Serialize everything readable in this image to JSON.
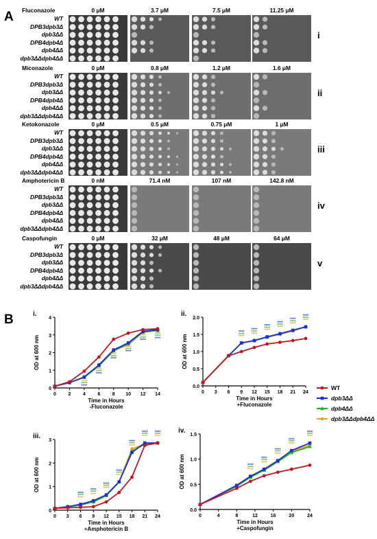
{
  "panel_a": {
    "letter": "A",
    "strains": [
      "WT",
      "DPB3dpb3Δ",
      "dpb3ΔΔ",
      "DPB4dpb4Δ",
      "dpb4ΔΔ",
      "dpb3ΔΔdpb4ΔΔ"
    ],
    "rows": [
      {
        "drug": "Fluconazole",
        "concs": [
          "0 μM",
          "3.7 μM",
          "7.5 μM",
          "11.25 μM"
        ],
        "roman": "i",
        "strains": [
          "WT",
          "DPB3dpb3Δ",
          "dpb3ΔΔ",
          "DPB4dpb4Δ",
          "dpb4ΔΔ",
          "dpb3ΔΔdpb4ΔΔ"
        ]
      },
      {
        "drug": "Miconazole",
        "concs": [
          "0 μM",
          "0.8 μM",
          "1.2 μM",
          "1.6 μM"
        ],
        "roman": "ii",
        "strains": [
          "WT",
          "DPB3dpb3Δ",
          "dpb3ΔΔ",
          "DPB4dpb4Δ",
          "dpb4ΔΔ",
          "dpb3ΔΔdpb4ΔΔ"
        ]
      },
      {
        "drug": "Ketokonazole",
        "concs": [
          "0 μM",
          "0.5 μM",
          "0.75 μM",
          "1 μM"
        ],
        "roman": "iii",
        "strains": [
          "WT",
          "DPB3dpb3Δ",
          "dpb3ΔΔ",
          "DPB4dpb4Δ",
          "dpb4ΔΔ",
          "dpb3ΔΔdpb4ΔΔ"
        ]
      },
      {
        "drug": "Amphotericin B",
        "concs": [
          "0 nM",
          "71.4 nM",
          "107 nM",
          "142.8 nM"
        ],
        "roman": "iv",
        "strains": [
          "WT",
          "DPB3dpb3Δ",
          "dpb3ΔΔ",
          "DPB4dpb4Δ",
          "dpb4ΔΔ",
          "dpb3ΔΔdpb4ΔΔ"
        ]
      },
      {
        "drug": "Caspofungin",
        "concs": [
          "0 μM",
          "32 μM",
          "48 μM",
          "64 μM"
        ],
        "roman": "v",
        "strains": [
          "WT",
          "DPB3dpb3Δ",
          "dpb3ΔΔ",
          "DPB4dpb4Δ",
          "dpb4ΔΔ",
          "dpb3ΔΔdpb4ΔΔ"
        ]
      }
    ]
  },
  "panel_b": {
    "letter": "B"
  },
  "legend": [
    {
      "label": "WT",
      "color": "#c0161e",
      "marker": "circle"
    },
    {
      "label": "dpb3ΔΔ",
      "color": "#1a2fd6",
      "marker": "square"
    },
    {
      "label": "dpb4ΔΔ",
      "color": "#1fb51f",
      "marker": "triangle"
    },
    {
      "label": "dpb3ΔΔdpb4ΔΔ",
      "color": "#f59a1c",
      "marker": "diamond"
    }
  ],
  "chart_data": [
    {
      "type": "line",
      "roman": "i.",
      "ylabel": "OD at 600 nm",
      "xlabel": "Time in Hours",
      "subtitle": "-Fluconazole",
      "xlim": [
        0,
        14
      ],
      "ylim": [
        0,
        4
      ],
      "xticks": [
        0,
        2,
        4,
        6,
        8,
        10,
        12,
        14
      ],
      "yticks": [
        0,
        1,
        2,
        3,
        4
      ],
      "x": [
        0,
        2,
        4,
        6,
        8,
        10,
        12,
        14
      ],
      "series": [
        {
          "name": "WT",
          "values": [
            0.1,
            0.35,
            0.95,
            1.75,
            2.75,
            3.1,
            3.3,
            3.35
          ]
        },
        {
          "name": "dpb3ΔΔ",
          "values": [
            0.1,
            0.3,
            0.62,
            1.3,
            2.15,
            2.55,
            3.2,
            3.3
          ]
        },
        {
          "name": "dpb4ΔΔ",
          "values": [
            0.1,
            0.3,
            0.6,
            1.25,
            2.1,
            2.5,
            3.15,
            3.25
          ]
        },
        {
          "name": "dpb3ΔΔdpb4ΔΔ",
          "values": [
            0.1,
            0.3,
            0.6,
            1.25,
            2.1,
            2.45,
            3.15,
            3.25
          ]
        }
      ]
    },
    {
      "type": "line",
      "roman": "ii.",
      "ylabel": "OD at 600 nm",
      "xlabel": "Time in Hours",
      "subtitle": "+Fluconazole",
      "xlim": [
        0,
        24
      ],
      "ylim": [
        0,
        2.0
      ],
      "xticks": [
        0,
        3,
        6,
        9,
        12,
        15,
        18,
        21,
        24
      ],
      "yticks": [
        0.0,
        0.5,
        1.0,
        1.5,
        2.0
      ],
      "x": [
        0,
        6,
        9,
        12,
        15,
        18,
        21,
        24
      ],
      "series": [
        {
          "name": "WT",
          "values": [
            0.1,
            0.88,
            1.0,
            1.12,
            1.22,
            1.27,
            1.32,
            1.38
          ]
        },
        {
          "name": "dpb3ΔΔ",
          "values": [
            0.1,
            0.88,
            1.25,
            1.32,
            1.43,
            1.52,
            1.62,
            1.72
          ]
        },
        {
          "name": "dpb4ΔΔ",
          "values": [
            0.1,
            0.88,
            1.25,
            1.32,
            1.42,
            1.52,
            1.62,
            1.72
          ]
        },
        {
          "name": "dpb3ΔΔdpb4ΔΔ",
          "values": [
            0.1,
            0.88,
            1.25,
            1.32,
            1.42,
            1.5,
            1.6,
            1.72
          ]
        }
      ]
    },
    {
      "type": "line",
      "roman": "iii.",
      "ylabel": "OD at 600 nm",
      "xlabel": "Time in Hours",
      "subtitle": "+Amphotericin B",
      "xlim": [
        0,
        24
      ],
      "ylim": [
        0,
        3
      ],
      "xticks": [
        0,
        3,
        6,
        9,
        12,
        15,
        18,
        21,
        24
      ],
      "yticks": [
        0,
        1,
        2,
        3
      ],
      "x": [
        0,
        3,
        6,
        9,
        12,
        15,
        18,
        21,
        24
      ],
      "series": [
        {
          "name": "WT",
          "values": [
            0.08,
            0.1,
            0.12,
            0.15,
            0.35,
            0.75,
            1.4,
            2.75,
            2.85
          ]
        },
        {
          "name": "dpb3ΔΔ",
          "values": [
            0.08,
            0.15,
            0.25,
            0.4,
            0.65,
            1.2,
            2.45,
            2.85,
            2.85
          ]
        },
        {
          "name": "dpb4ΔΔ",
          "values": [
            0.08,
            0.14,
            0.22,
            0.35,
            0.62,
            1.2,
            2.5,
            2.8,
            2.85
          ]
        },
        {
          "name": "dpb3ΔΔdpb4ΔΔ",
          "values": [
            0.08,
            0.14,
            0.22,
            0.35,
            0.62,
            1.2,
            2.6,
            2.8,
            2.85
          ]
        }
      ]
    },
    {
      "type": "line",
      "roman": "iv.",
      "ylabel": "OD at 600 nm",
      "xlabel": "Time in Hours",
      "subtitle": "+Caspofungin",
      "xlim": [
        0,
        24
      ],
      "ylim": [
        0,
        1.5
      ],
      "xticks": [
        0,
        4,
        8,
        12,
        16,
        20,
        24
      ],
      "yticks": [
        0.0,
        0.5,
        1.0,
        1.5
      ],
      "x": [
        0,
        8,
        11,
        14,
        17,
        20,
        24
      ],
      "series": [
        {
          "name": "WT",
          "values": [
            0.1,
            0.42,
            0.56,
            0.67,
            0.74,
            0.8,
            0.88
          ]
        },
        {
          "name": "dpb3ΔΔ",
          "values": [
            0.1,
            0.48,
            0.66,
            0.8,
            0.97,
            1.17,
            1.32
          ]
        },
        {
          "name": "dpb4ΔΔ",
          "values": [
            0.1,
            0.46,
            0.64,
            0.78,
            0.95,
            1.13,
            1.25
          ]
        },
        {
          "name": "dpb3ΔΔdpb4ΔΔ",
          "values": [
            0.1,
            0.47,
            0.65,
            0.8,
            0.97,
            1.15,
            1.28
          ]
        }
      ]
    }
  ]
}
